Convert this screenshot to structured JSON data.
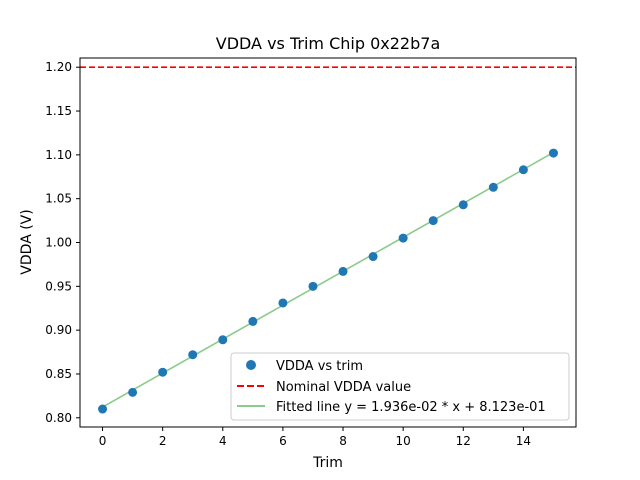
{
  "chart_data": {
    "type": "scatter",
    "title": "VDDA vs Trim Chip 0x22b7a",
    "xlabel": "Trim",
    "ylabel": "VDDA (V)",
    "xlim": [
      -0.75,
      15.75
    ],
    "ylim": [
      0.7895,
      1.2105
    ],
    "x_ticks": [
      0,
      2,
      4,
      6,
      8,
      10,
      12,
      14
    ],
    "x_tick_labels": [
      "0",
      "2",
      "4",
      "6",
      "8",
      "10",
      "12",
      "14"
    ],
    "y_ticks": [
      0.8,
      0.85,
      0.9,
      0.95,
      1.0,
      1.05,
      1.1,
      1.15,
      1.2
    ],
    "y_tick_labels": [
      "0.80",
      "0.85",
      "0.90",
      "0.95",
      "1.00",
      "1.05",
      "1.10",
      "1.15",
      "1.20"
    ],
    "grid": false,
    "legend_position": "lower-right",
    "series": [
      {
        "name": "VDDA vs trim",
        "kind": "scatter",
        "color": "#1f77b4",
        "x": [
          0,
          1,
          2,
          3,
          4,
          5,
          6,
          7,
          8,
          9,
          10,
          11,
          12,
          13,
          14,
          15
        ],
        "y": [
          0.81,
          0.829,
          0.852,
          0.872,
          0.889,
          0.91,
          0.931,
          0.95,
          0.967,
          0.984,
          1.005,
          1.025,
          1.043,
          1.063,
          1.083,
          1.102
        ]
      },
      {
        "name": "Nominal VDDA value",
        "kind": "hline",
        "color": "#ff0000",
        "linestyle": "dashed",
        "y": 1.2
      },
      {
        "name": "Fitted line y = 1.936e-02 * x + 8.123e-01",
        "kind": "fit_line",
        "color": "#2ca02c",
        "slope": 0.01936,
        "intercept": 0.8123,
        "x_range": [
          0,
          15
        ]
      }
    ]
  }
}
